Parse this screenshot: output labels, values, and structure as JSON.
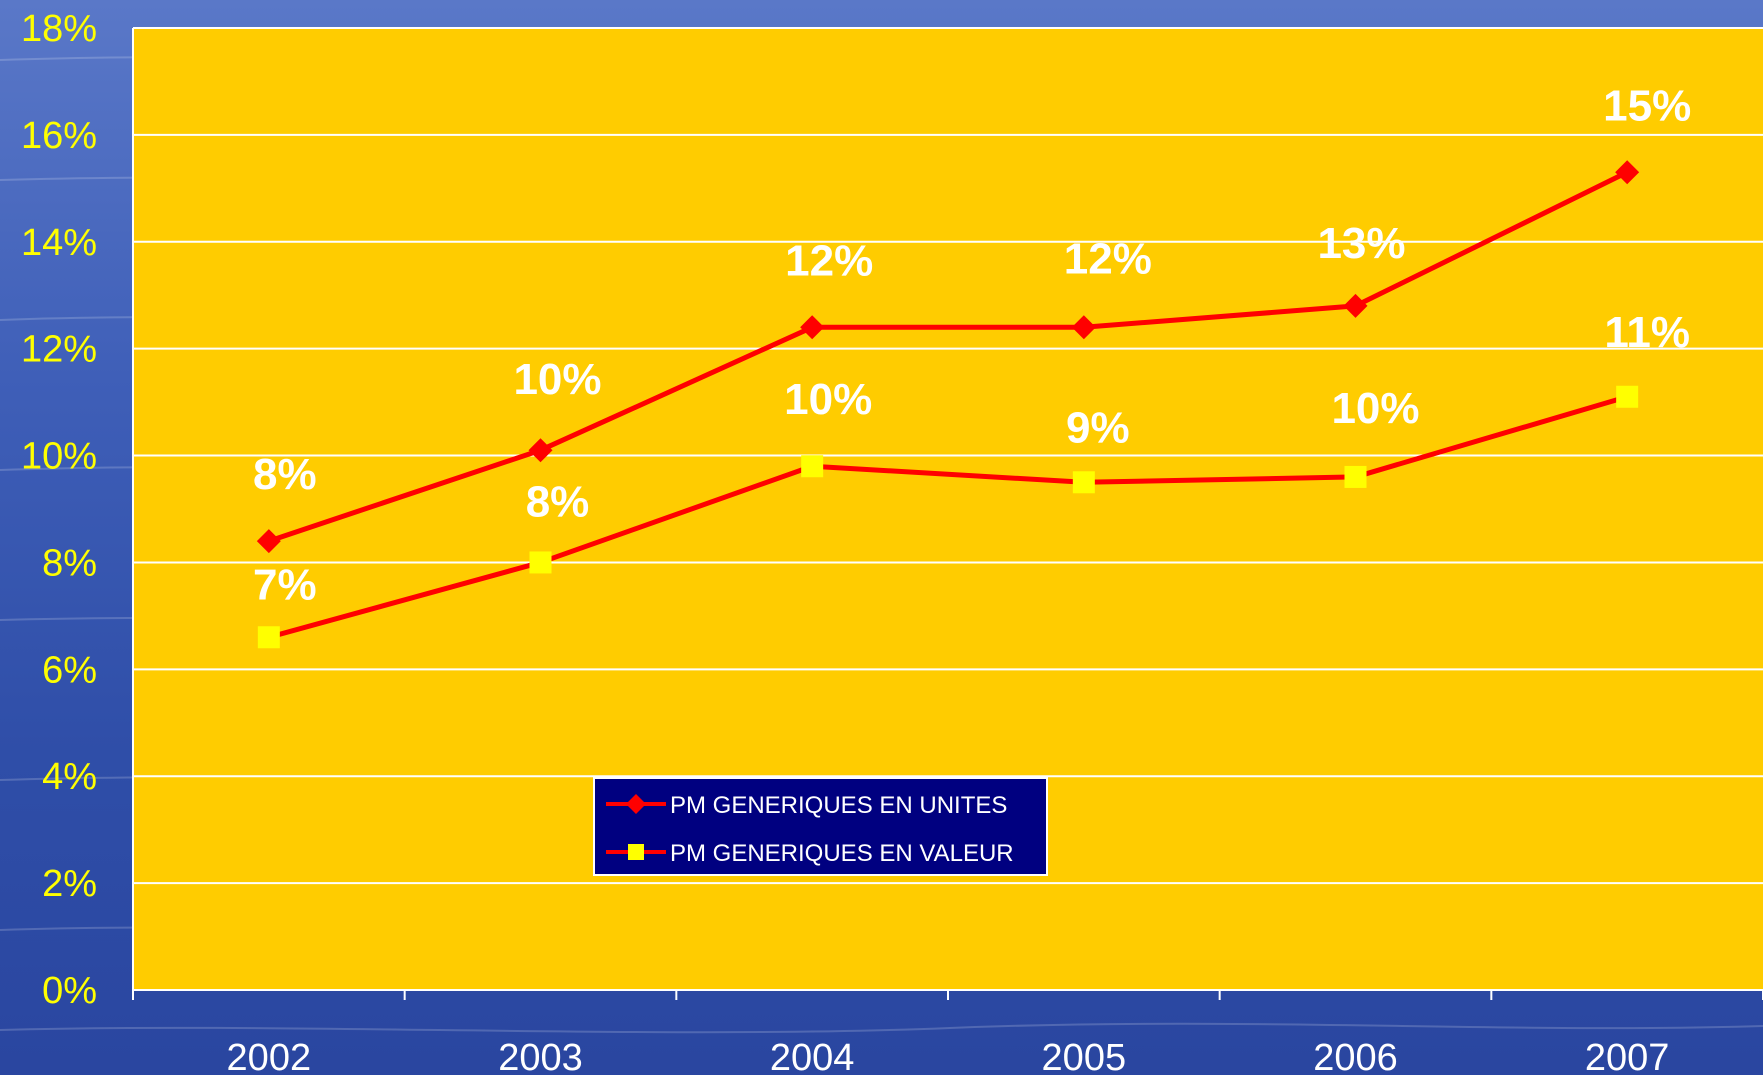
{
  "colors": {
    "plot_background": "#ffcc00",
    "gridline": "#ffffff",
    "line": "#ff0000",
    "series_units_marker": "#ff0000",
    "series_value_marker": "#ffff00",
    "legend_background": "#000080",
    "y_tick_text": "#ffff00",
    "x_tick_text": "#ffffff",
    "data_label_text": "#ffffff"
  },
  "chart_data": {
    "type": "line",
    "title": "",
    "xlabel": "",
    "ylabel": "",
    "categories": [
      "2002",
      "2003",
      "2004",
      "2005",
      "2006",
      "2007"
    ],
    "ylim": [
      0,
      18
    ],
    "y_ticks": [
      0,
      2,
      4,
      6,
      8,
      10,
      12,
      14,
      16,
      18
    ],
    "y_tick_labels": [
      "0%",
      "2%",
      "4%",
      "6%",
      "8%",
      "10%",
      "12%",
      "14%",
      "16%",
      "18%"
    ],
    "grid": true,
    "legend_position": "bottom-center",
    "series": [
      {
        "name": "PM GENERIQUES EN UNITES",
        "marker": "diamond",
        "values": [
          8.4,
          10.1,
          12.4,
          12.4,
          12.8,
          15.3
        ],
        "labels": [
          "8%",
          "10%",
          "12%",
          "12%",
          "13%",
          "15%"
        ]
      },
      {
        "name": "PM GENERIQUES EN VALEUR",
        "marker": "square",
        "values": [
          6.6,
          8.0,
          9.8,
          9.5,
          9.6,
          11.1
        ],
        "labels": [
          "7%",
          "8%",
          "10%",
          "9%",
          "10%",
          "11%"
        ]
      }
    ]
  }
}
